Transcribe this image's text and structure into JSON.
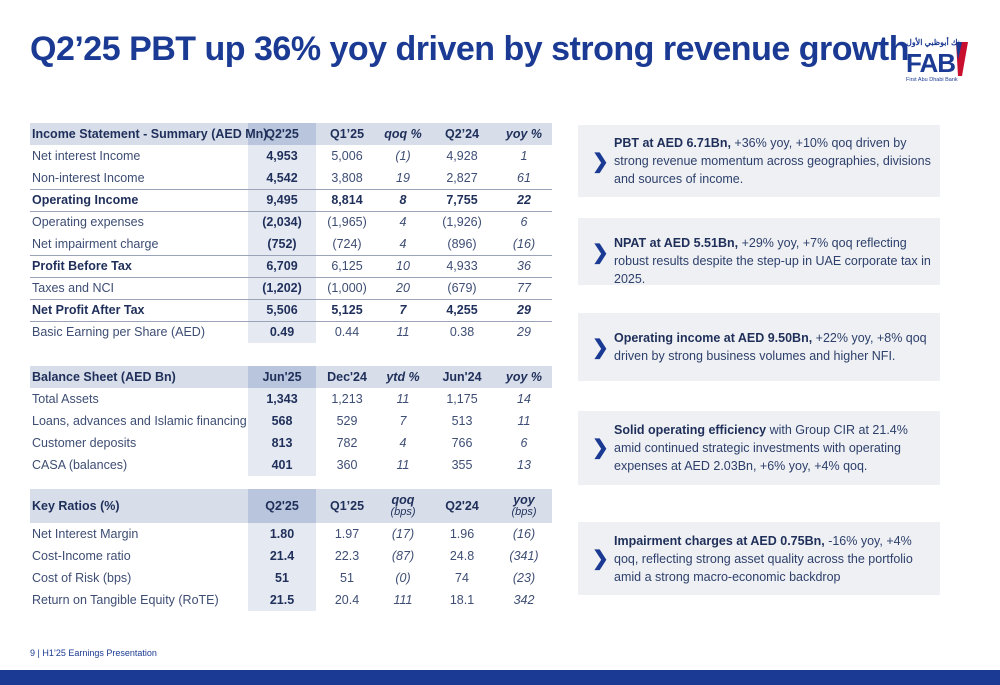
{
  "title": "Q2’25 PBT up 36% yoy driven by strong revenue growth",
  "logo": {
    "arabic": "بنك أبوظبي الأول",
    "brand": "FAB",
    "subtitle": "First Abu Dhabi Bank"
  },
  "income": {
    "headers": [
      "Income Statement - Summary (AED Mn)",
      "Q2'25",
      "Q1’25",
      "qoq %",
      "Q2’24",
      "yoy %"
    ],
    "rows": [
      [
        "Net interest Income",
        "4,953",
        "5,006",
        "(1)",
        "4,928",
        "1"
      ],
      [
        "Non-interest Income",
        "4,542",
        "3,808",
        "19",
        "2,827",
        "61"
      ],
      [
        "Operating Income",
        "9,495",
        "8,814",
        "8",
        "7,755",
        "22"
      ],
      [
        "Operating expenses",
        "(2,034)",
        "(1,965)",
        "4",
        "(1,926)",
        "6"
      ],
      [
        "Net impairment charge",
        "(752)",
        "(724)",
        "4",
        "(896)",
        "(16)"
      ],
      [
        "Profit Before Tax",
        "6,709",
        "6,125",
        "10",
        "4,933",
        "36"
      ],
      [
        "Taxes and NCI",
        "(1,202)",
        "(1,000)",
        "20",
        "(679)",
        "77"
      ],
      [
        "Net Profit After Tax",
        "5,506",
        "5,125",
        "7",
        "4,255",
        "29"
      ],
      [
        "Basic Earning per Share (AED)",
        "0.49",
        "0.44",
        "11",
        "0.38",
        "29"
      ]
    ]
  },
  "balance": {
    "headers": [
      "Balance Sheet (AED Bn)",
      "Jun'25",
      "Dec'24",
      "ytd %",
      "Jun'24",
      "yoy %"
    ],
    "rows": [
      [
        "Total Assets",
        "1,343",
        "1,213",
        "11",
        "1,175",
        "14"
      ],
      [
        "Loans, advances and Islamic financing",
        "568",
        "529",
        "7",
        "513",
        "11"
      ],
      [
        "Customer deposits",
        "813",
        "782",
        "4",
        "766",
        "6"
      ],
      [
        "CASA (balances)",
        "401",
        "360",
        "11",
        "355",
        "13"
      ]
    ]
  },
  "ratios": {
    "headers": [
      "Key Ratios (%)",
      "Q2'25",
      "Q1’25",
      "qoq",
      "Q2'24",
      "yoy"
    ],
    "header_units": [
      "(bps)",
      "(bps)"
    ],
    "rows": [
      [
        "Net Interest Margin",
        "1.80",
        "1.97",
        "(17)",
        "1.96",
        "(16)"
      ],
      [
        "Cost-Income ratio",
        "21.4",
        "22.3",
        "(87)",
        "24.8",
        "(341)"
      ],
      [
        "Cost of Risk (bps)",
        "51",
        "51",
        "(0)",
        "74",
        "(23)"
      ],
      [
        "Return on Tangible Equity (RoTE)",
        "21.5",
        "20.4",
        "111",
        "18.1",
        "342"
      ]
    ]
  },
  "highlights": [
    {
      "bold": "PBT at AED 6.71Bn,",
      "text": " +36% yoy, +10% qoq driven by strong revenue momentum across geographies, divisions and sources of income."
    },
    {
      "bold": "NPAT at AED 5.51Bn,",
      "text": " +29% yoy, +7% qoq reflecting robust results despite the step-up in UAE corporate tax in 2025."
    },
    {
      "bold": "Operating income at AED 9.50Bn,",
      "text": " +22% yoy, +8% qoq driven by strong business volumes and higher NFI."
    },
    {
      "bold": "Solid operating efficiency",
      "text": " with Group CIR at 21.4% amid continued strategic investments with operating expenses at AED 2.03Bn, +6% yoy, +4% qoq."
    },
    {
      "bold": "Impairment charges at AED 0.75Bn,",
      "text": " -16% yoy, +4% qoq, reflecting strong asset quality across the portfolio amid a strong macro-economic backdrop"
    }
  ],
  "footer": "9  |  H1’25 Earnings Presentation",
  "colors": {
    "brand_blue": "#1b3a93",
    "header_bg": "#d7deea",
    "card_bg": "#eef0f3"
  }
}
